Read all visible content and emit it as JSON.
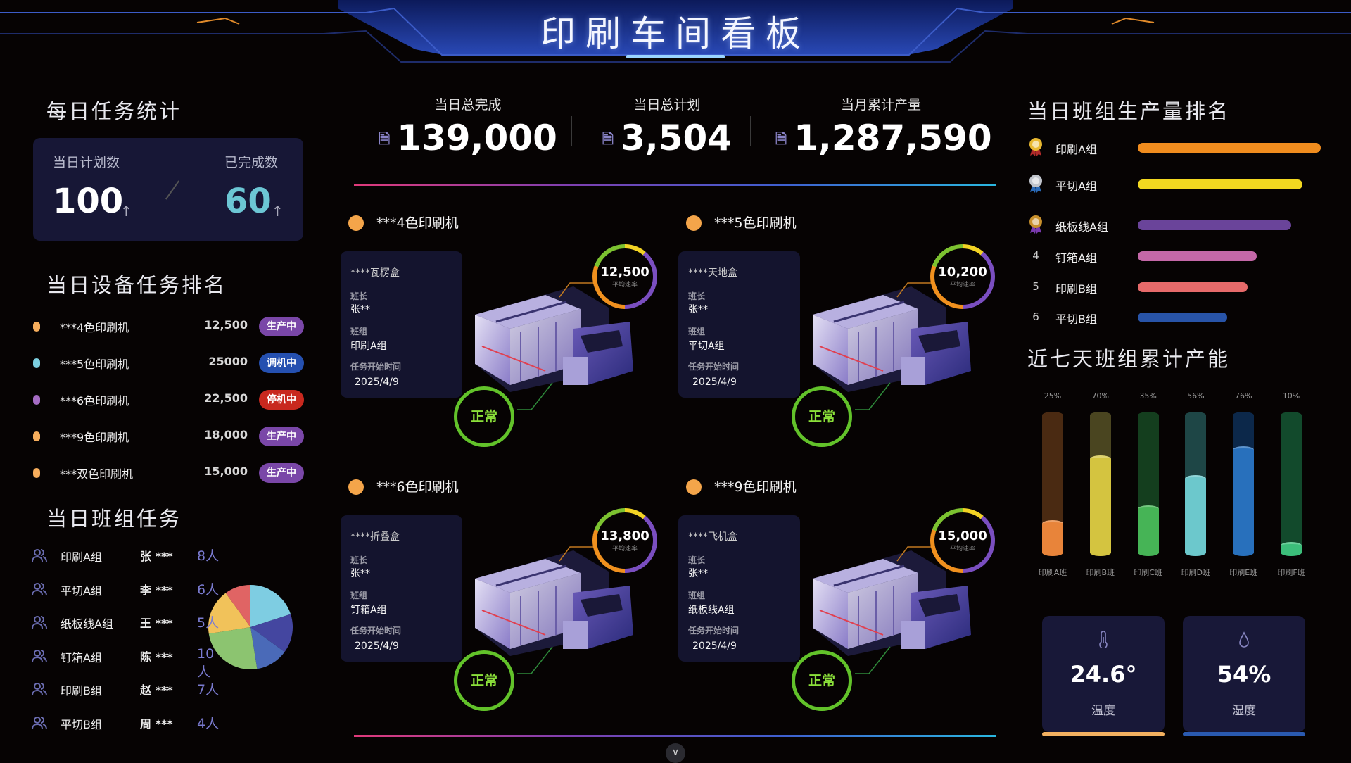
{
  "header": {
    "title": "印刷车间看板"
  },
  "daily_stats": {
    "title": "每日任务统计",
    "planned_label": "当日计划数",
    "planned_value": "100",
    "done_label": "已完成数",
    "done_value": "60",
    "arrow": "↑"
  },
  "device_ranking": {
    "title": "当日设备任务排名",
    "items": [
      {
        "name": "***4色印刷机",
        "value": "12,500",
        "status": "生产中",
        "dot": "#f6ad5c",
        "badge": "#7a47a8"
      },
      {
        "name": "***5色印刷机",
        "value": "25000",
        "status": "调机中",
        "dot": "#7ccfe0",
        "badge": "#2550b0"
      },
      {
        "name": "***6色印刷机",
        "value": "22,500",
        "status": "停机中",
        "dot": "#a56cc4",
        "badge": "#c8281e"
      },
      {
        "name": "***9色印刷机",
        "value": "18,000",
        "status": "生产中",
        "dot": "#f6ad5c",
        "badge": "#7a47a8"
      },
      {
        "name": "***双色印刷机",
        "value": "15,000",
        "status": "生产中",
        "dot": "#f6ad5c",
        "badge": "#7a47a8"
      }
    ]
  },
  "team_tasks": {
    "title": "当日班组任务",
    "items": [
      {
        "name": "印刷A组",
        "leader": "张 ***",
        "count": "8人"
      },
      {
        "name": "平切A组",
        "leader": "李 ***",
        "count": "6人"
      },
      {
        "name": "纸板线A组",
        "leader": "王 ***",
        "count": "5人"
      },
      {
        "name": "钉箱A组",
        "leader": "陈 ***",
        "count": "10人"
      },
      {
        "name": "印刷B组",
        "leader": "赵 ***",
        "count": "7人"
      },
      {
        "name": "平切B组",
        "leader": "周 ***",
        "count": "4人"
      }
    ],
    "pie": {
      "values": [
        8,
        6,
        5,
        10,
        7,
        4
      ],
      "colors": [
        "#7ecde2",
        "#4446a0",
        "#4a6ab8",
        "#8cc470",
        "#f1c25a",
        "#e06464"
      ]
    }
  },
  "kpis": [
    {
      "label": "当日总完成",
      "value": "139,000"
    },
    {
      "label": "当日总计划",
      "value": "3,504"
    },
    {
      "label": "当月累计产量",
      "value": "1,287,590"
    }
  ],
  "machines": [
    {
      "title": "***4色印刷机",
      "product": "****瓦楞盒",
      "leader_label": "班长",
      "leader": "张**",
      "team_label": "班组",
      "team": "印刷A组",
      "start_label": "任务开始时间",
      "start": "2025/4/9",
      "speed": "12,500",
      "speed_label": "平均速率",
      "status": "正常"
    },
    {
      "title": "***5色印刷机",
      "product": "****天地盒",
      "leader_label": "班长",
      "leader": "张**",
      "team_label": "班组",
      "team": "平切A组",
      "start_label": "任务开始时间",
      "start": "2025/4/9",
      "speed": "10,200",
      "speed_label": "平均速率",
      "status": "正常"
    },
    {
      "title": "***6色印刷机",
      "product": "****折叠盒",
      "leader_label": "班长",
      "leader": "张**",
      "team_label": "班组",
      "team": "钉箱A组",
      "start_label": "任务开始时间",
      "start": "2025/4/9",
      "speed": "13,800",
      "speed_label": "平均速率",
      "status": "正常"
    },
    {
      "title": "***9色印刷机",
      "product": "****飞机盒",
      "leader_label": "班长",
      "leader": "张**",
      "team_label": "班组",
      "team": "纸板线A组",
      "start_label": "任务开始时间",
      "start": "2025/4/9",
      "speed": "15,000",
      "speed_label": "平均速率",
      "status": "正常"
    }
  ],
  "team_ranking": {
    "title": "当日班组生产量排名",
    "items": [
      {
        "rank": "1",
        "icon": "gold-medal-icon",
        "name": "印刷A组",
        "fill": 100,
        "color": "#f08c1e"
      },
      {
        "rank": "2",
        "icon": "silver-medal-icon",
        "name": "平切A组",
        "fill": 90,
        "color": "#f2d820"
      },
      {
        "rank": "3",
        "icon": "bronze-medal-icon",
        "name": "纸板线A组",
        "fill": 84,
        "color": "#6a449a"
      },
      {
        "rank": "4",
        "name": "钉箱A组",
        "fill": 65,
        "color": "#c468a8"
      },
      {
        "rank": "5",
        "name": "印刷B组",
        "fill": 60,
        "color": "#e66a6a"
      },
      {
        "rank": "6",
        "name": "平切B组",
        "fill": 49,
        "color": "#2854a8"
      }
    ]
  },
  "chart_data": {
    "type": "bar",
    "title": "近七天班组累计产能",
    "categories": [
      "印刷A班",
      "印刷B班",
      "印刷C班",
      "印刷D班",
      "印刷E班",
      "印刷F班"
    ],
    "values": [
      25,
      70,
      35,
      56,
      76,
      10
    ],
    "value_labels": [
      "25%",
      "70%",
      "35%",
      "56%",
      "76%",
      "10%"
    ],
    "ylim": [
      0,
      100
    ],
    "colors": [
      {
        "fill": "#e8843a",
        "track": "#4a2a12"
      },
      {
        "fill": "#d4c440",
        "track": "#4a4520"
      },
      {
        "fill": "#46b456",
        "track": "#143e1e"
      },
      {
        "fill": "#6cc8cc",
        "track": "#1e4646"
      },
      {
        "fill": "#2870bc",
        "track": "#0c284a"
      },
      {
        "fill": "#3cbe7a",
        "track": "#124a2c"
      }
    ]
  },
  "environment": [
    {
      "icon": "thermometer-icon",
      "value": "24.6°",
      "label": "温度",
      "color": "#f2b060"
    },
    {
      "icon": "droplet-icon",
      "value": "54%",
      "label": "湿度",
      "color": "#2a5ab0"
    }
  ],
  "footer": {
    "chevron": "∨"
  }
}
